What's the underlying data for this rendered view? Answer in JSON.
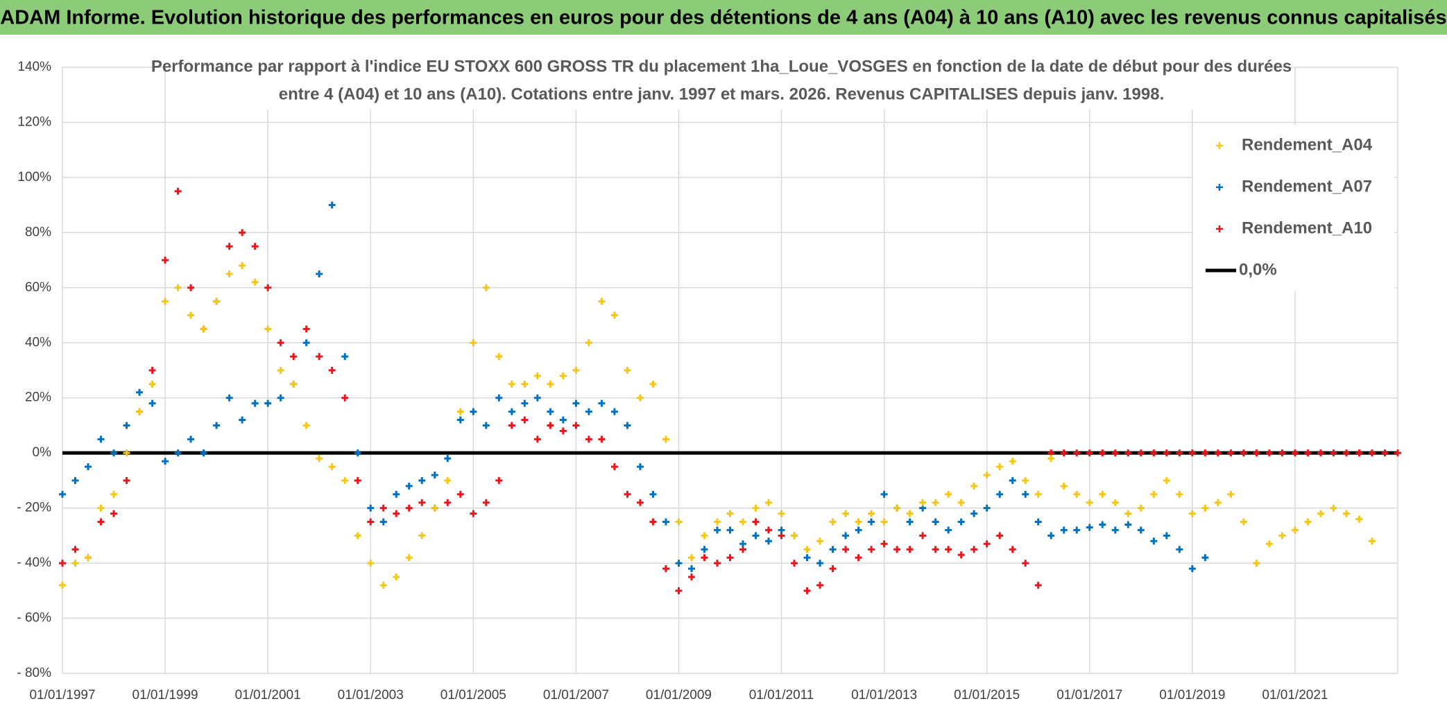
{
  "header": {
    "title": "ADAM Informe. Evolution historique des performances en euros pour des détentions de 4 ans (A04) à 10 ans (A10) avec les revenus connus capitalisés"
  },
  "chart_data": {
    "type": "scatter",
    "title": [
      "Performance par rapport à l'indice EU STOXX 600 GROSS TR  du placement 1ha_Loue_VOSGES en fonction de la date de début pour des durées",
      "entre 4 (A04) et 10 ans (A10). Cotations entre janv. 1997 et mars. 2026. Revenus CAPITALISES depuis janv. 1998."
    ],
    "xlim": [
      1997,
      2023
    ],
    "xticks": [
      {
        "value": 1997,
        "label": "01/01/1997"
      },
      {
        "value": 1999,
        "label": "01/01/1999"
      },
      {
        "value": 2001,
        "label": "01/01/2001"
      },
      {
        "value": 2003,
        "label": "01/01/2003"
      },
      {
        "value": 2005,
        "label": "01/01/2005"
      },
      {
        "value": 2007,
        "label": "01/01/2007"
      },
      {
        "value": 2009,
        "label": "01/01/2009"
      },
      {
        "value": 2011,
        "label": "01/01/2011"
      },
      {
        "value": 2013,
        "label": "01/01/2013"
      },
      {
        "value": 2015,
        "label": "01/01/2015"
      },
      {
        "value": 2017,
        "label": "01/01/2017"
      },
      {
        "value": 2019,
        "label": "01/01/2019"
      },
      {
        "value": 2021,
        "label": "01/01/2021"
      }
    ],
    "ylim": [
      -80,
      140
    ],
    "yticks": [
      {
        "value": 140,
        "label": "140%"
      },
      {
        "value": 120,
        "label": "120%"
      },
      {
        "value": 100,
        "label": "100%"
      },
      {
        "value": 80,
        "label": "80%"
      },
      {
        "value": 60,
        "label": "60%"
      },
      {
        "value": 40,
        "label": "40%"
      },
      {
        "value": 20,
        "label": "20%"
      },
      {
        "value": 0,
        "label": "0%"
      },
      {
        "value": -20,
        "label": "- 20%"
      },
      {
        "value": -40,
        "label": "- 40%"
      },
      {
        "value": -60,
        "label": "- 60%"
      },
      {
        "value": -80,
        "label": "- 80%"
      }
    ],
    "grid": true,
    "legend": "top-right",
    "series": [
      {
        "name": "Rendement_A04",
        "color": "#f5c518",
        "x": [
          1997,
          1997.25,
          1997.5,
          1997.75,
          1998,
          1998.25,
          1998.5,
          1998.75,
          1999,
          1999.25,
          1999.5,
          1999.75,
          2000,
          2000.25,
          2000.5,
          2000.75,
          2001,
          2001.25,
          2001.5,
          2001.75,
          2002,
          2002.25,
          2002.5,
          2002.75,
          2003,
          2003.25,
          2003.5,
          2003.75,
          2004,
          2004.25,
          2004.5,
          2004.75,
          2005,
          2005.25,
          2005.5,
          2005.75,
          2006,
          2006.25,
          2006.5,
          2006.75,
          2007,
          2007.25,
          2007.5,
          2007.75,
          2008,
          2008.25,
          2008.5,
          2008.75,
          2009,
          2009.25,
          2009.5,
          2009.75,
          2010,
          2010.25,
          2010.5,
          2010.75,
          2011,
          2011.25,
          2011.5,
          2011.75,
          2012,
          2012.25,
          2012.5,
          2012.75,
          2013,
          2013.25,
          2013.5,
          2013.75,
          2014,
          2014.25,
          2014.5,
          2014.75,
          2015,
          2015.25,
          2015.5,
          2015.75,
          2016,
          2016.25,
          2016.5,
          2016.75,
          2017,
          2017.25,
          2017.5,
          2017.75,
          2018,
          2018.25,
          2018.5,
          2018.75,
          2019,
          2019.25,
          2019.5,
          2019.75,
          2020,
          2020.25,
          2020.5,
          2020.75,
          2021,
          2021.25,
          2021.5,
          2021.75,
          2022,
          2022.25,
          2022.5
        ],
        "values": [
          -48,
          -40,
          -38,
          -20,
          -15,
          0,
          15,
          25,
          55,
          60,
          50,
          45,
          55,
          65,
          68,
          62,
          45,
          30,
          25,
          10,
          -2,
          -5,
          -10,
          -30,
          -40,
          -48,
          -45,
          -38,
          -30,
          -20,
          -10,
          15,
          40,
          60,
          35,
          25,
          25,
          28,
          25,
          28,
          30,
          40,
          55,
          50,
          30,
          20,
          25,
          5,
          -25,
          -38,
          -30,
          -25,
          -22,
          -25,
          -20,
          -18,
          -22,
          -30,
          -35,
          -32,
          -25,
          -22,
          -25,
          -22,
          -25,
          -20,
          -22,
          -18,
          -18,
          -15,
          -18,
          -12,
          -8,
          -5,
          -3,
          -10,
          -15,
          -2,
          -12,
          -15,
          -18,
          -15,
          -18,
          -22,
          -20,
          -15,
          -10,
          -15,
          -22,
          -20,
          -18,
          -15,
          -25,
          -40,
          -33,
          -30,
          -28,
          -25,
          -22,
          -20,
          -22,
          -24,
          -32
        ]
      },
      {
        "name": "Rendement_A07",
        "color": "#0070c0",
        "x": [
          1997,
          1997.25,
          1997.5,
          1997.75,
          1998,
          1998.25,
          1998.5,
          1998.75,
          1999,
          1999.25,
          1999.5,
          1999.75,
          2000,
          2000.25,
          2000.5,
          2000.75,
          2001,
          2001.25,
          2001.5,
          2001.75,
          2002,
          2002.25,
          2002.5,
          2002.75,
          2003,
          2003.25,
          2003.5,
          2003.75,
          2004,
          2004.25,
          2004.5,
          2004.75,
          2005,
          2005.25,
          2005.5,
          2005.75,
          2006,
          2006.25,
          2006.5,
          2006.75,
          2007,
          2007.25,
          2007.5,
          2007.75,
          2008,
          2008.25,
          2008.5,
          2008.75,
          2009,
          2009.25,
          2009.5,
          2009.75,
          2010,
          2010.25,
          2010.5,
          2010.75,
          2011,
          2011.25,
          2011.5,
          2011.75,
          2012,
          2012.25,
          2012.5,
          2012.75,
          2013,
          2013.25,
          2013.5,
          2013.75,
          2014,
          2014.25,
          2014.5,
          2014.75,
          2015,
          2015.25,
          2015.5,
          2015.75,
          2016,
          2016.25,
          2016.5,
          2016.75,
          2017,
          2017.25,
          2017.5,
          2017.75,
          2018,
          2018.25,
          2018.5,
          2018.75,
          2019,
          2019.25
        ],
        "values": [
          -15,
          -10,
          -5,
          5,
          0,
          10,
          22,
          18,
          -3,
          0,
          5,
          0,
          10,
          20,
          12,
          18,
          18,
          20,
          25,
          40,
          65,
          90,
          35,
          0,
          -20,
          -25,
          -15,
          -12,
          -10,
          -8,
          -2,
          12,
          15,
          10,
          20,
          15,
          18,
          20,
          15,
          12,
          18,
          15,
          18,
          15,
          10,
          -5,
          -15,
          -25,
          -40,
          -42,
          -35,
          -28,
          -28,
          -33,
          -30,
          -32,
          -28,
          -30,
          -38,
          -40,
          -35,
          -30,
          -28,
          -25,
          -15,
          -20,
          -25,
          -20,
          -25,
          -28,
          -25,
          -22,
          -20,
          -15,
          -10,
          -15,
          -25,
          -30,
          -28,
          -28,
          -27,
          -26,
          -28,
          -26,
          -28,
          -32,
          -30,
          -35,
          -42,
          -38
        ]
      },
      {
        "name": "Rendement_A10",
        "color": "#e8151b",
        "x": [
          1997,
          1997.25,
          1997.5,
          1997.75,
          1998,
          1998.25,
          1998.5,
          1998.75,
          1999,
          1999.25,
          1999.5,
          1999.75,
          2000,
          2000.25,
          2000.5,
          2000.75,
          2001,
          2001.25,
          2001.5,
          2001.75,
          2002,
          2002.25,
          2002.5,
          2002.75,
          2003,
          2003.25,
          2003.5,
          2003.75,
          2004,
          2004.25,
          2004.5,
          2004.75,
          2005,
          2005.25,
          2005.5,
          2005.75,
          2006,
          2006.25,
          2006.5,
          2006.75,
          2007,
          2007.25,
          2007.5,
          2007.75,
          2008,
          2008.25,
          2008.5,
          2008.75,
          2009,
          2009.25,
          2009.5,
          2009.75,
          2010,
          2010.25,
          2010.5,
          2010.75,
          2011,
          2011.25,
          2011.5,
          2011.75,
          2012,
          2012.25,
          2012.5,
          2012.75,
          2013,
          2013.25,
          2013.5,
          2013.75,
          2014,
          2014.25,
          2014.5,
          2014.75,
          2015,
          2015.25,
          2015.5,
          2015.75,
          2016,
          2016.25,
          2016.5,
          2016.75,
          2017,
          2017.25,
          2017.5,
          2017.75,
          2018,
          2018.25,
          2018.5,
          2018.75,
          2019,
          2019.25,
          2019.5,
          2019.75,
          2020,
          2020.25,
          2020.5,
          2020.75,
          2021,
          2021.25,
          2021.5,
          2021.75,
          2022,
          2022.25,
          2022.5,
          2022.75,
          2023
        ],
        "values": [
          -40,
          -35,
          -38,
          -25,
          -22,
          -10,
          15,
          30,
          70,
          95,
          60,
          45,
          55,
          75,
          80,
          75,
          60,
          40,
          35,
          45,
          35,
          30,
          20,
          -10,
          -25,
          -20,
          -22,
          -20,
          -18,
          -20,
          -18,
          -15,
          -22,
          -18,
          -10,
          10,
          12,
          5,
          10,
          8,
          10,
          5,
          5,
          -5,
          -15,
          -18,
          -25,
          -42,
          -50,
          -45,
          -38,
          -40,
          -38,
          -35,
          -25,
          -28,
          -30,
          -40,
          -50,
          -48,
          -42,
          -35,
          -38,
          -35,
          -33,
          -35,
          -35,
          -30,
          -35,
          -35,
          -37,
          -35,
          -33,
          -30,
          -35,
          -40,
          -48,
          0,
          0,
          0,
          0,
          0,
          0,
          0,
          0,
          0,
          0,
          0,
          0,
          0,
          0,
          0,
          0,
          0,
          0,
          0,
          0,
          0,
          0,
          0,
          0,
          0,
          0,
          0,
          0
        ]
      },
      {
        "name": "0,0%",
        "color": "#000000",
        "line": true,
        "x": [
          1997,
          2023
        ],
        "values": [
          0,
          0
        ]
      }
    ]
  }
}
